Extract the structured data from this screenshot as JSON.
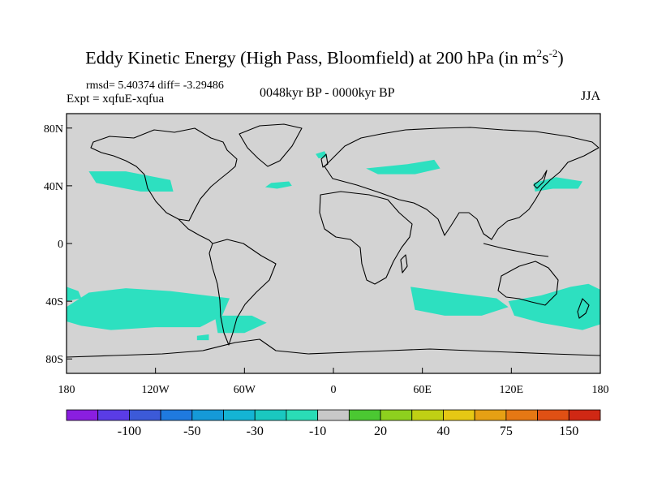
{
  "chart_data": {
    "type": "heatmap",
    "title_main": "Eddy Kinetic Energy (High Pass, Bloomfield) at 200 hPa (in m",
    "title_sup1": "2",
    "title_mid": "s",
    "title_sup2": "-2",
    "title_end": ")",
    "stats_line": "rmsd= 5.40374 diff= -3.29486",
    "expt_line": "Expt = xqfuE-xqfua",
    "period": "0048kyr BP - 0000kyr BP",
    "season": "JJA",
    "lat_ticks": [
      "80N",
      "40N",
      "0",
      "40S",
      "80S"
    ],
    "lon_ticks": [
      "180",
      "120W",
      "60W",
      "0",
      "60E",
      "120E",
      "180"
    ],
    "lon_range": [
      -180,
      180
    ],
    "lat_range": [
      -90,
      90
    ],
    "colorbar": {
      "labels": [
        "-100",
        "-50",
        "-30",
        "-10",
        "20",
        "40",
        "75",
        "150"
      ],
      "colors": [
        "#8a1ee0",
        "#5a3ce6",
        "#3c5ad8",
        "#1f7adf",
        "#159ad8",
        "#14b4d4",
        "#1ac8c0",
        "#2adcb6",
        "#c8c8c8",
        "#4bc832",
        "#8ed01e",
        "#c0d014",
        "#e6c814",
        "#e6a014",
        "#e67814",
        "#e05014",
        "#d02814"
      ]
    },
    "field_background": "#d3d3d3",
    "anomaly_color": "#2de0c0",
    "regions": [
      {
        "name": "north-pacific-region",
        "points": [
          [
            -165,
            50
          ],
          [
            -140,
            50
          ],
          [
            -110,
            44
          ],
          [
            -108,
            36
          ],
          [
            -130,
            36
          ],
          [
            -160,
            42
          ]
        ]
      },
      {
        "name": "north-atlantic-region",
        "points": [
          [
            -42,
            42
          ],
          [
            -30,
            43
          ],
          [
            -28,
            40
          ],
          [
            -38,
            38
          ],
          [
            -46,
            39
          ]
        ]
      },
      {
        "name": "north-asia-region",
        "points": [
          [
            22,
            52
          ],
          [
            50,
            55
          ],
          [
            68,
            58
          ],
          [
            72,
            52
          ],
          [
            55,
            48
          ],
          [
            30,
            48
          ]
        ]
      },
      {
        "name": "iceland-region",
        "points": [
          [
            -12,
            62
          ],
          [
            -6,
            64
          ],
          [
            -4,
            60
          ],
          [
            -10,
            59
          ]
        ]
      },
      {
        "name": "japan-region",
        "points": [
          [
            135,
            42
          ],
          [
            150,
            46
          ],
          [
            168,
            43
          ],
          [
            165,
            38
          ],
          [
            148,
            38
          ],
          [
            136,
            36
          ]
        ]
      },
      {
        "name": "south-pacific-west-region",
        "points": [
          [
            -180,
            -30
          ],
          [
            -172,
            -33
          ],
          [
            -170,
            -38
          ],
          [
            -180,
            -40
          ]
        ]
      },
      {
        "name": "south-pacific-main-region",
        "points": [
          [
            -180,
            -44
          ],
          [
            -165,
            -34
          ],
          [
            -140,
            -31
          ],
          [
            -110,
            -33
          ],
          [
            -70,
            -38
          ],
          [
            -75,
            -50
          ],
          [
            -90,
            -58
          ],
          [
            -120,
            -58
          ],
          [
            -150,
            -60
          ],
          [
            -170,
            -57
          ],
          [
            -180,
            -54
          ]
        ]
      },
      {
        "name": "drake-region",
        "points": [
          [
            -80,
            -50
          ],
          [
            -55,
            -50
          ],
          [
            -45,
            -55
          ],
          [
            -60,
            -62
          ],
          [
            -78,
            -62
          ]
        ]
      },
      {
        "name": "drake-small-region",
        "points": [
          [
            -92,
            -64
          ],
          [
            -84,
            -63
          ],
          [
            -84,
            -67
          ],
          [
            -92,
            -67
          ]
        ]
      },
      {
        "name": "south-indian-region",
        "points": [
          [
            52,
            -30
          ],
          [
            80,
            -34
          ],
          [
            110,
            -38
          ],
          [
            118,
            -44
          ],
          [
            100,
            -50
          ],
          [
            75,
            -50
          ],
          [
            55,
            -46
          ]
        ]
      },
      {
        "name": "south-indian-east-region",
        "points": [
          [
            118,
            -40
          ],
          [
            140,
            -36
          ],
          [
            160,
            -30
          ],
          [
            172,
            -28
          ],
          [
            180,
            -32
          ],
          [
            180,
            -56
          ],
          [
            168,
            -60
          ],
          [
            140,
            -55
          ],
          [
            122,
            -50
          ]
        ]
      }
    ]
  }
}
